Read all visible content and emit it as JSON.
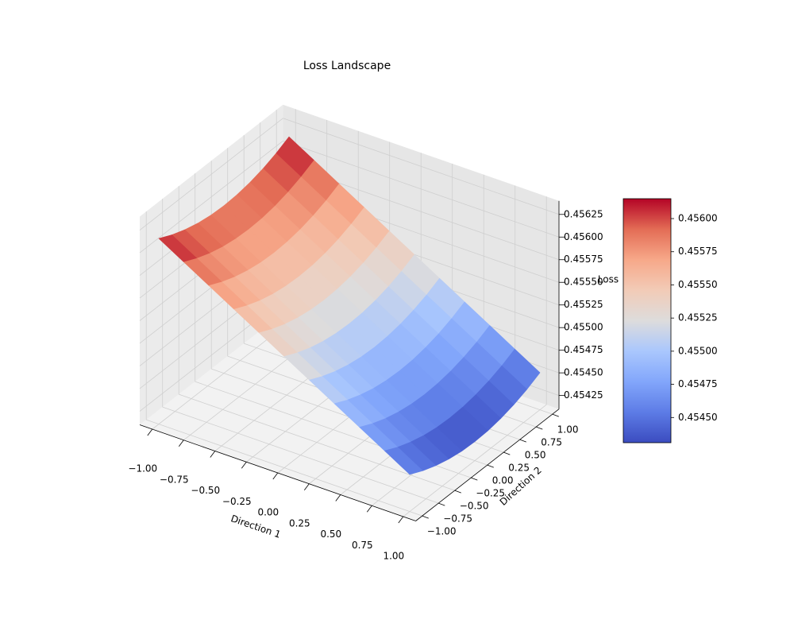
{
  "chart_data": {
    "type": "surface",
    "title": "Loss Landscape",
    "xlabel": "Direction 1",
    "ylabel": "Direction 2",
    "zlabel": "Loss",
    "x": [
      -1,
      -0.8,
      -0.6,
      -0.4,
      -0.2,
      0,
      0.2,
      0.4,
      0.6,
      0.8,
      1
    ],
    "y": [
      -1,
      -0.8,
      -0.6,
      -0.4,
      -0.2,
      0,
      0.2,
      0.4,
      0.6,
      0.8,
      1
    ],
    "z": [
      [
        0.45615,
        0.455986,
        0.455822,
        0.455658,
        0.455494,
        0.45533,
        0.455166,
        0.455002,
        0.454838,
        0.454674,
        0.45451
      ],
      [
        0.456078,
        0.455914,
        0.45575,
        0.455586,
        0.455422,
        0.455258,
        0.455094,
        0.45493,
        0.454766,
        0.454602,
        0.454438
      ],
      [
        0.456022,
        0.455858,
        0.455694,
        0.45553,
        0.455366,
        0.455202,
        0.455038,
        0.454874,
        0.45471,
        0.454546,
        0.454382
      ],
      [
        0.455982,
        0.455818,
        0.455654,
        0.45549,
        0.455326,
        0.455162,
        0.454998,
        0.454834,
        0.45467,
        0.454506,
        0.454342
      ],
      [
        0.455958,
        0.455794,
        0.45563,
        0.455466,
        0.455302,
        0.455138,
        0.454974,
        0.45481,
        0.454646,
        0.454482,
        0.454318
      ],
      [
        0.45595,
        0.455786,
        0.455622,
        0.455458,
        0.455294,
        0.45513,
        0.454966,
        0.454802,
        0.454638,
        0.454474,
        0.45431
      ],
      [
        0.455958,
        0.455794,
        0.45563,
        0.455466,
        0.455302,
        0.455138,
        0.454974,
        0.45481,
        0.454646,
        0.454482,
        0.454318
      ],
      [
        0.455982,
        0.455818,
        0.455654,
        0.45549,
        0.455326,
        0.455162,
        0.454998,
        0.454834,
        0.45467,
        0.454506,
        0.454342
      ],
      [
        0.456022,
        0.455858,
        0.455694,
        0.45553,
        0.455366,
        0.455202,
        0.455038,
        0.454874,
        0.45471,
        0.454546,
        0.454382
      ],
      [
        0.456078,
        0.455914,
        0.45575,
        0.455586,
        0.455422,
        0.455258,
        0.455094,
        0.45493,
        0.454766,
        0.454602,
        0.454438
      ],
      [
        0.45615,
        0.455986,
        0.455822,
        0.455658,
        0.455494,
        0.45533,
        0.455166,
        0.455002,
        0.454838,
        0.454674,
        0.45451
      ]
    ],
    "xlim": [
      -1.1,
      1.1
    ],
    "ylim": [
      -1.1,
      1.1
    ],
    "zlim": [
      0.4541,
      0.4564
    ],
    "xticks": [
      {
        "value": -1,
        "label": "−1.00"
      },
      {
        "value": -0.75,
        "label": "−0.75"
      },
      {
        "value": -0.5,
        "label": "−0.50"
      },
      {
        "value": -0.25,
        "label": "−0.25"
      },
      {
        "value": 0,
        "label": "0.00"
      },
      {
        "value": 0.25,
        "label": "0.25"
      },
      {
        "value": 0.5,
        "label": "0.50"
      },
      {
        "value": 0.75,
        "label": "0.75"
      },
      {
        "value": 1,
        "label": "1.00"
      }
    ],
    "yticks": [
      {
        "value": -1,
        "label": "−1.00"
      },
      {
        "value": -0.75,
        "label": "−0.75"
      },
      {
        "value": -0.5,
        "label": "−0.50"
      },
      {
        "value": -0.25,
        "label": "−0.25"
      },
      {
        "value": 0,
        "label": "0.00"
      },
      {
        "value": 0.25,
        "label": "0.25"
      },
      {
        "value": 0.5,
        "label": "0.50"
      },
      {
        "value": 0.75,
        "label": "0.75"
      },
      {
        "value": 1,
        "label": "1.00"
      }
    ],
    "zticks": [
      0.45425,
      {
        "value": 0.4545,
        "label": "0.45450"
      },
      0.45475,
      {
        "value": 0.455,
        "label": "0.45500"
      },
      0.45525,
      {
        "value": 0.4555,
        "label": "0.45550"
      },
      0.45575,
      {
        "value": 0.456,
        "label": "0.45600"
      },
      0.45625
    ],
    "colormap": "coolwarm",
    "clim": [
      0.45431,
      0.45615
    ],
    "colorbar_ticks": [
      {
        "value": 0.4545,
        "label": "0.45450"
      },
      0.45475,
      {
        "value": 0.455,
        "label": "0.45500"
      },
      0.45525,
      {
        "value": 0.4555,
        "label": "0.45550"
      },
      0.45575,
      {
        "value": 0.456,
        "label": "0.45600"
      }
    ],
    "grid": true
  }
}
